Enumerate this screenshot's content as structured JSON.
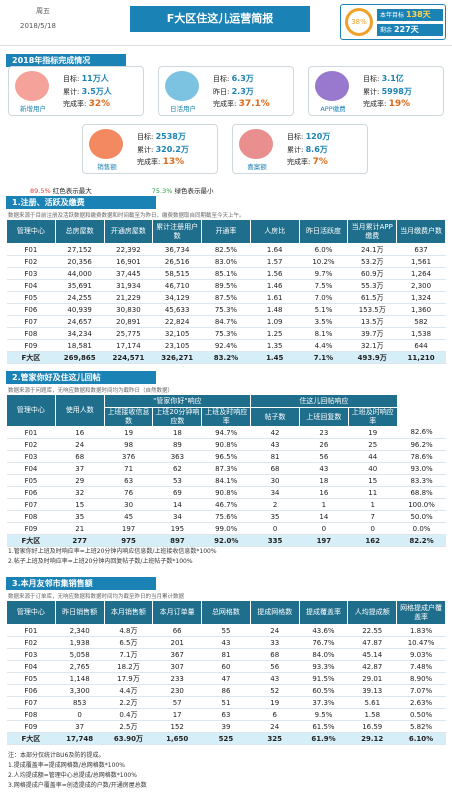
{
  "header": {
    "weekday": "周五",
    "date": "2018/5/18",
    "title": "F大区住这儿运营简报",
    "progress": "38%",
    "target_label": "本年目标",
    "target_value": "138天",
    "remaining_label": "剩余",
    "remaining_value": "227天"
  },
  "kpi": {
    "title": "2018年指标完成情况",
    "cards": [
      {
        "name": "新增用户",
        "lines": [
          [
            "目标:",
            "11万人"
          ],
          [
            "累计:",
            "3.5万人"
          ],
          [
            "完成率:",
            "32%"
          ]
        ]
      },
      {
        "name": "日活用户",
        "lines": [
          [
            "目标:",
            "6.3万"
          ],
          [
            "昨日:",
            "2.3万"
          ],
          [
            "完成率:",
            "37.1%"
          ]
        ]
      },
      {
        "name": "APP缴费",
        "lines": [
          [
            "目标:",
            "3.1亿"
          ],
          [
            "累计:",
            "5998万"
          ],
          [
            "完成率:",
            "19%"
          ]
        ]
      },
      {
        "name": "销售额",
        "lines": [
          [
            "目标:",
            "2538万"
          ],
          [
            "累计:",
            "320.2万"
          ],
          [
            "完成率:",
            "13%"
          ]
        ]
      },
      {
        "name": "喜案额",
        "lines": [
          [
            "目标:",
            "120万"
          ],
          [
            "累计:",
            "8.6万"
          ],
          [
            "完成率:",
            "7%"
          ]
        ]
      }
    ],
    "legend": [
      [
        "89.5%",
        "红色表示最大"
      ],
      [
        "75.3%",
        "绿色表示最小"
      ]
    ]
  },
  "table1": {
    "title": "1.注册、活跃及缴费",
    "note": "数据来源于目前注册及活跃数据和缴费数据和时间截至为昨日，缴费数据取自同期截至今天上午。",
    "columns": [
      "管理中心",
      "总房屋数",
      "开通房屋数",
      "累计注册用户数",
      "开通率",
      "人房比",
      "昨日活跃度",
      "当月累计APP缴费",
      "当月缴费户数"
    ],
    "rows": [
      [
        "F01",
        "27,152",
        "22,392",
        "36,734",
        "82.5%",
        "1.64",
        "6.0%",
        "24.1万",
        "637"
      ],
      [
        "F02",
        "20,356",
        "16,901",
        "26,516",
        "83.0%",
        "1.57",
        "10.2%",
        "53.2万",
        "1,561"
      ],
      [
        "F03",
        "44,000",
        "37,445",
        "58,515",
        "85.1%",
        "1.56",
        "9.7%",
        "60.9万",
        "1,264"
      ],
      [
        "F04",
        "35,691",
        "31,934",
        "46,710",
        "89.5%",
        "1.46",
        "7.5%",
        "55.3万",
        "2,300"
      ],
      [
        "F05",
        "24,255",
        "21,229",
        "34,129",
        "87.5%",
        "1.61",
        "7.0%",
        "61.5万",
        "1,324"
      ],
      [
        "F06",
        "40,939",
        "30,830",
        "45,633",
        "75.3%",
        "1.48",
        "5.1%",
        "153.5万",
        "1,360"
      ],
      [
        "F07",
        "24,657",
        "20,891",
        "22,824",
        "84.7%",
        "1.09",
        "3.5%",
        "13.5万",
        "582"
      ],
      [
        "F08",
        "34,234",
        "25,775",
        "32,105",
        "75.3%",
        "1.25",
        "8.1%",
        "39.7万",
        "1,538"
      ],
      [
        "F09",
        "18,581",
        "17,174",
        "23,105",
        "92.4%",
        "1.35",
        "4.4%",
        "32.1万",
        "644"
      ],
      [
        "F大区",
        "269,865",
        "224,571",
        "326,271",
        "83.2%",
        "1.45",
        "7.1%",
        "493.9万",
        "11,210"
      ]
    ]
  },
  "table2": {
    "title": "2.管家你好及住这儿回帖",
    "note": "数据来源于问题库，无响应数据和数据时间均为截昨日（自然数据）",
    "group_headers": [
      "\"管家你好\"响应",
      "住这儿回帖响应"
    ],
    "columns": [
      "管理中心",
      "使用人数",
      "上班接收信息数",
      "上班20分钟响应数",
      "上班及时响应率",
      "帖子数",
      "上班回复数",
      "上班及时响应率"
    ],
    "rows": [
      [
        "F01",
        "16",
        "19",
        "18",
        "94.7%",
        "42",
        "23",
        "19",
        "82.6%"
      ],
      [
        "F02",
        "24",
        "98",
        "89",
        "90.8%",
        "43",
        "26",
        "25",
        "96.2%"
      ],
      [
        "F03",
        "68",
        "376",
        "363",
        "96.5%",
        "81",
        "56",
        "44",
        "78.6%"
      ],
      [
        "F04",
        "37",
        "71",
        "62",
        "87.3%",
        "68",
        "43",
        "40",
        "93.0%"
      ],
      [
        "F05",
        "29",
        "63",
        "53",
        "84.1%",
        "30",
        "18",
        "15",
        "83.3%"
      ],
      [
        "F06",
        "32",
        "76",
        "69",
        "90.8%",
        "34",
        "16",
        "11",
        "68.8%"
      ],
      [
        "F07",
        "15",
        "30",
        "14",
        "46.7%",
        "2",
        "1",
        "1",
        "100.0%"
      ],
      [
        "F08",
        "35",
        "45",
        "34",
        "75.6%",
        "35",
        "14",
        "7",
        "50.0%"
      ],
      [
        "F09",
        "21",
        "197",
        "195",
        "99.0%",
        "0",
        "0",
        "0",
        "0.0%"
      ],
      [
        "F大区",
        "277",
        "975",
        "897",
        "92.0%",
        "335",
        "197",
        "162",
        "82.2%"
      ]
    ],
    "footnotes": [
      "1.管家你好上班及时响应率=上班20分钟内响应信息数/上班接收信息数*100%",
      "2.帖子上班及时响应率=上班20分钟内回复帖子数/上班帖子数*100%"
    ]
  },
  "table3": {
    "title": "3.本月友邻市集销售额",
    "note": "数据来源于订单库，无响应数据和数据时间均为截至昨日的当月累计数据",
    "columns": [
      "管理中心",
      "昨日销售额",
      "本月销售额",
      "本月订单量",
      "总网格数",
      "提成网格数",
      "提成覆盖率",
      "人均提成额",
      "网格提成户覆盖率"
    ],
    "rows": [
      [
        "F01",
        "2,340",
        "4.8万",
        "66",
        "55",
        "24",
        "43.6%",
        "22.55",
        "1.83%"
      ],
      [
        "F02",
        "1,938",
        "6.5万",
        "201",
        "43",
        "33",
        "76.7%",
        "47.87",
        "10.47%"
      ],
      [
        "F03",
        "5,058",
        "7.1万",
        "367",
        "81",
        "68",
        "84.0%",
        "45.14",
        "9.03%"
      ],
      [
        "F04",
        "2,765",
        "18.2万",
        "307",
        "60",
        "56",
        "93.3%",
        "42.87",
        "7.48%"
      ],
      [
        "F05",
        "1,148",
        "17.9万",
        "233",
        "47",
        "43",
        "91.5%",
        "29.01",
        "8.90%"
      ],
      [
        "F06",
        "3,300",
        "4.4万",
        "230",
        "86",
        "52",
        "60.5%",
        "39.13",
        "7.07%"
      ],
      [
        "F07",
        "853",
        "2.2万",
        "57",
        "51",
        "19",
        "37.3%",
        "5.61",
        "2.63%"
      ],
      [
        "F08",
        "0",
        "0.4万",
        "17",
        "63",
        "6",
        "9.5%",
        "1.58",
        "0.50%"
      ],
      [
        "F09",
        "37",
        "2.5万",
        "152",
        "39",
        "24",
        "61.5%",
        "16.59",
        "5.82%"
      ],
      [
        "F大区",
        "17,748",
        "63.90万",
        "1,650",
        "525",
        "325",
        "61.9%",
        "29.12",
        "6.10%"
      ]
    ],
    "footnotes": [
      "注：本部分仅统计BU6及防的提成。",
      "1.提成覆盖率=提成网格数/总网格数*100%",
      "2.人均提成额=管理中心总提成/总网格数*100%",
      "3.网格提成户覆盖率=创造提成的户数/开通房屋总数"
    ]
  }
}
